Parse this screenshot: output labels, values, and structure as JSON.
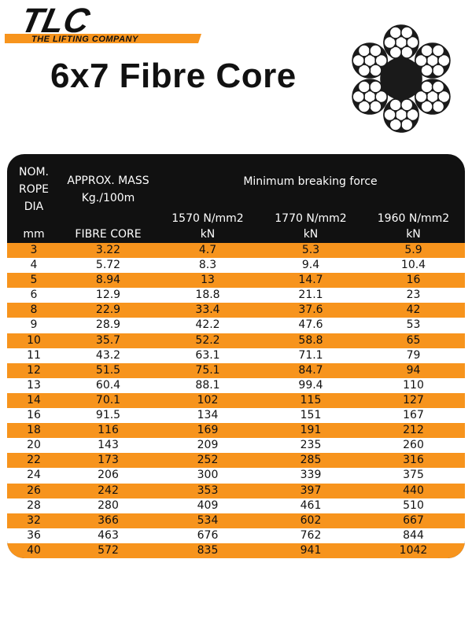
{
  "logo": {
    "brand": "TLC",
    "tagline": "THE LIFTING COMPANY"
  },
  "title": "6x7 Fibre Core",
  "colors": {
    "orange": "#f7941d",
    "header": "#111111"
  },
  "table": {
    "header": {
      "col1": [
        "NOM.",
        "ROPE",
        "DIA"
      ],
      "col1_unit": "mm",
      "col2": [
        "APPROX. MASS",
        "Kg./100m"
      ],
      "col2_sub": "FIBRE CORE",
      "group": "Minimum breaking force",
      "grades": [
        {
          "grade": "1570 N/mm2",
          "unit": "kN"
        },
        {
          "grade": "1770 N/mm2",
          "unit": "kN"
        },
        {
          "grade": "1960 N/mm2",
          "unit": "kN"
        }
      ]
    },
    "rows": [
      [
        "3",
        "3.22",
        "4.7",
        "5.3",
        "5.9"
      ],
      [
        "4",
        "5.72",
        "8.3",
        "9.4",
        "10.4"
      ],
      [
        "5",
        "8.94",
        "13",
        "14.7",
        "16"
      ],
      [
        "6",
        "12.9",
        "18.8",
        "21.1",
        "23"
      ],
      [
        "8",
        "22.9",
        "33.4",
        "37.6",
        "42"
      ],
      [
        "9",
        "28.9",
        "42.2",
        "47.6",
        "53"
      ],
      [
        "10",
        "35.7",
        "52.2",
        "58.8",
        "65"
      ],
      [
        "11",
        "43.2",
        "63.1",
        "71.1",
        "79"
      ],
      [
        "12",
        "51.5",
        "75.1",
        "84.7",
        "94"
      ],
      [
        "13",
        "60.4",
        "88.1",
        "99.4",
        "110"
      ],
      [
        "14",
        "70.1",
        "102",
        "115",
        "127"
      ],
      [
        "16",
        "91.5",
        "134",
        "151",
        "167"
      ],
      [
        "18",
        "116",
        "169",
        "191",
        "212"
      ],
      [
        "20",
        "143",
        "209",
        "235",
        "260"
      ],
      [
        "22",
        "173",
        "252",
        "285",
        "316"
      ],
      [
        "24",
        "206",
        "300",
        "339",
        "375"
      ],
      [
        "26",
        "242",
        "353",
        "397",
        "440"
      ],
      [
        "28",
        "280",
        "409",
        "461",
        "510"
      ],
      [
        "32",
        "366",
        "534",
        "602",
        "667"
      ],
      [
        "36",
        "463",
        "676",
        "762",
        "844"
      ],
      [
        "40",
        "572",
        "835",
        "941",
        "1042"
      ]
    ]
  }
}
